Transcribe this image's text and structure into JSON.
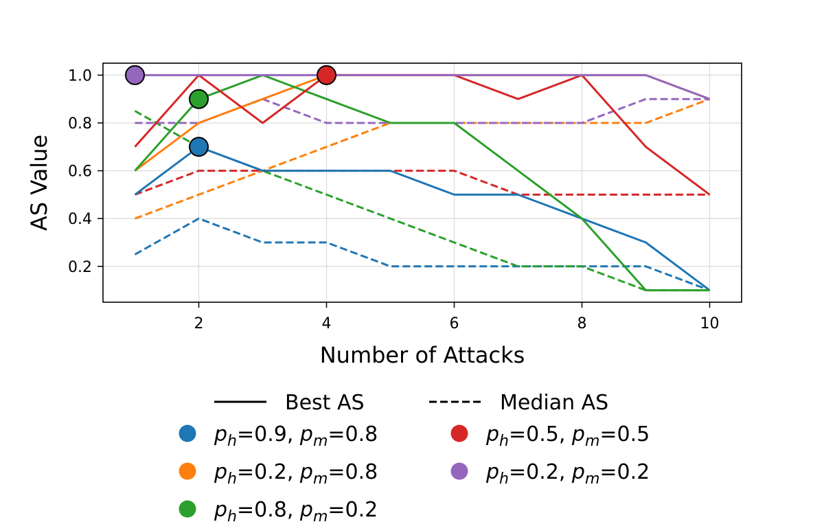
{
  "chart_data": {
    "type": "line",
    "xlabel": "Number of Attacks",
    "ylabel": "AS Value",
    "xlim": [
      0.5,
      10.5
    ],
    "ylim": [
      0.05,
      1.05
    ],
    "xticks": [
      2,
      4,
      6,
      8,
      10
    ],
    "xtick_labels": [
      "2",
      "4",
      "6",
      "8",
      "10"
    ],
    "yticks": [
      0.2,
      0.4,
      0.6,
      0.8,
      1.0
    ],
    "ytick_labels": [
      "0.2",
      "0.4",
      "0.6",
      "0.8",
      "1.0"
    ],
    "grid": true,
    "legend_placement": "below",
    "x": [
      1,
      2,
      3,
      4,
      5,
      6,
      7,
      8,
      9,
      10
    ],
    "style_legend": [
      {
        "name": "solid",
        "label": "Best AS"
      },
      {
        "name": "dashed",
        "label": "Median AS"
      }
    ],
    "series": [
      {
        "name": "p_h=0.9, p_m=0.8",
        "ph": "0.9",
        "pm": "0.8",
        "color": "#1f77b4",
        "best": [
          0.5,
          0.7,
          0.6,
          0.6,
          0.6,
          0.5,
          0.5,
          0.4,
          0.3,
          0.1
        ],
        "median": [
          0.25,
          0.4,
          0.3,
          0.3,
          0.2,
          0.2,
          0.2,
          0.2,
          0.2,
          0.1
        ],
        "marker": {
          "x": 2,
          "y": 0.7
        }
      },
      {
        "name": "p_h=0.2, p_m=0.8",
        "ph": "0.2",
        "pm": "0.8",
        "color": "#ff7f0e",
        "best": [
          0.6,
          0.8,
          0.9,
          1.0,
          1.0,
          1.0,
          1.0,
          1.0,
          1.0,
          0.9
        ],
        "median": [
          0.4,
          0.5,
          0.6,
          0.7,
          0.8,
          0.8,
          0.8,
          0.8,
          0.8,
          0.9
        ],
        "marker": null
      },
      {
        "name": "p_h=0.8, p_m=0.2",
        "ph": "0.8",
        "pm": "0.2",
        "color": "#2ca02c",
        "best": [
          0.6,
          0.9,
          1.0,
          0.9,
          0.8,
          0.8,
          0.6,
          0.4,
          0.1,
          0.1
        ],
        "median": [
          0.85,
          0.7,
          0.6,
          0.5,
          0.4,
          0.3,
          0.2,
          0.2,
          0.1,
          0.1
        ],
        "marker": {
          "x": 2,
          "y": 0.9
        }
      },
      {
        "name": "p_h=0.5, p_m=0.5",
        "ph": "0.5",
        "pm": "0.5",
        "color": "#d62728",
        "best": [
          0.7,
          1.0,
          0.8,
          1.0,
          1.0,
          1.0,
          0.9,
          1.0,
          0.7,
          0.5
        ],
        "median": [
          0.5,
          0.6,
          0.6,
          0.6,
          0.6,
          0.6,
          0.5,
          0.5,
          0.5,
          0.5
        ],
        "marker": {
          "x": 4,
          "y": 1.0
        }
      },
      {
        "name": "p_h=0.2, p_m=0.2",
        "ph": "0.2",
        "pm": "0.2",
        "color": "#9467bd",
        "best": [
          1.0,
          1.0,
          1.0,
          1.0,
          1.0,
          1.0,
          1.0,
          1.0,
          1.0,
          0.9
        ],
        "median": [
          0.8,
          0.8,
          0.9,
          0.8,
          0.8,
          0.8,
          0.8,
          0.8,
          0.9,
          0.9
        ],
        "marker": {
          "x": 1,
          "y": 1.0
        }
      }
    ]
  }
}
